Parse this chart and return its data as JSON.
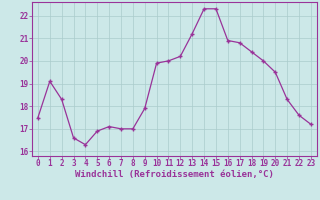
{
  "x": [
    0,
    1,
    2,
    3,
    4,
    5,
    6,
    7,
    8,
    9,
    10,
    11,
    12,
    13,
    14,
    15,
    16,
    17,
    18,
    19,
    20,
    21,
    22,
    23
  ],
  "y": [
    17.5,
    19.1,
    18.3,
    16.6,
    16.3,
    16.9,
    17.1,
    17.0,
    17.0,
    17.9,
    19.9,
    20.0,
    20.2,
    21.2,
    22.3,
    22.3,
    20.9,
    20.8,
    20.4,
    20.0,
    19.5,
    18.3,
    17.6,
    17.2
  ],
  "line_color": "#993399",
  "marker": "+",
  "marker_color": "#993399",
  "bg_color": "#cce8e8",
  "grid_color": "#aacccc",
  "xlabel": "Windchill (Refroidissement éolien,°C)",
  "ylabel": "",
  "ylim": [
    15.8,
    22.6
  ],
  "xlim": [
    -0.5,
    23.5
  ],
  "yticks": [
    16,
    17,
    18,
    19,
    20,
    21,
    22
  ],
  "xticks": [
    0,
    1,
    2,
    3,
    4,
    5,
    6,
    7,
    8,
    9,
    10,
    11,
    12,
    13,
    14,
    15,
    16,
    17,
    18,
    19,
    20,
    21,
    22,
    23
  ],
  "label_color": "#993399",
  "tick_color": "#993399",
  "spine_color": "#993399",
  "font_size": 5.5,
  "xlabel_fontsize": 6.5,
  "linewidth": 0.9,
  "markersize": 3.5,
  "markeredgewidth": 1.0
}
